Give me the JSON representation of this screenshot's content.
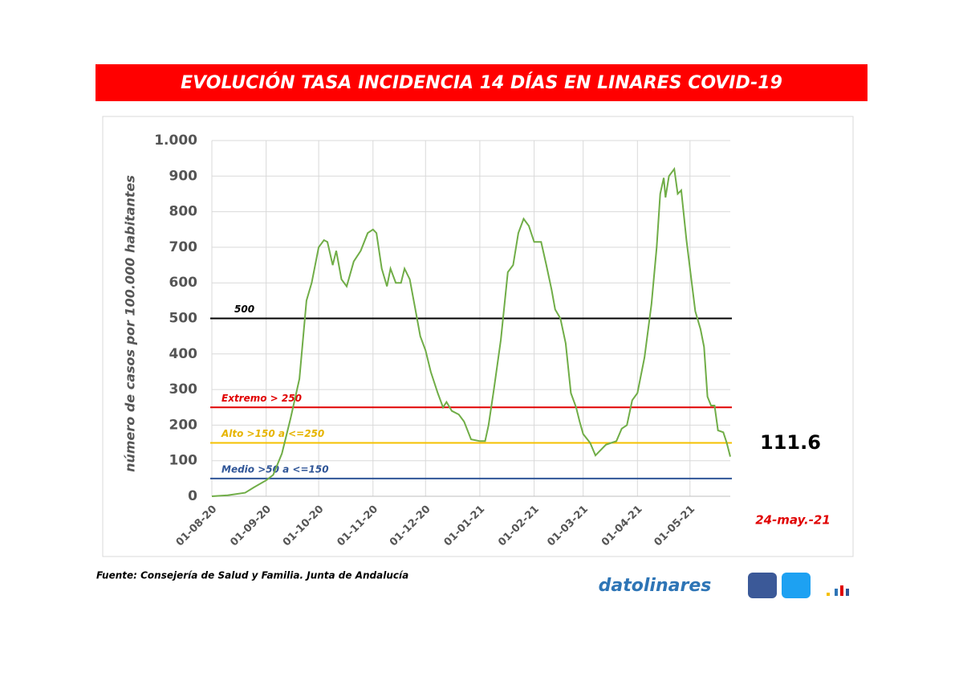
{
  "chart_data": {
    "type": "line",
    "title": "EVOLUCIÓN TASA INCIDENCIA 14 DÍAS EN LINARES COVID-19",
    "y_label": "número de casos por 100.000 habitantes",
    "x": [
      "01-08-20",
      "10-08-20",
      "20-08-20",
      "25-08-20",
      "01-09-20",
      "05-09-20",
      "10-09-20",
      "15-09-20",
      "20-09-20",
      "24-09-20",
      "27-09-20",
      "01-10-20",
      "04-10-20",
      "06-10-20",
      "09-10-20",
      "11-10-20",
      "14-10-20",
      "17-10-20",
      "21-10-20",
      "25-10-20",
      "29-10-20",
      "01-11-20",
      "03-11-20",
      "06-11-20",
      "09-11-20",
      "11-11-20",
      "14-11-20",
      "17-11-20",
      "19-11-20",
      "22-11-20",
      "25-11-20",
      "28-11-20",
      "01-12-20",
      "04-12-20",
      "08-12-20",
      "11-12-20",
      "13-12-20",
      "16-12-20",
      "20-12-20",
      "23-12-20",
      "27-12-20",
      "01-01-21",
      "04-01-21",
      "06-01-21",
      "09-01-21",
      "13-01-21",
      "17-01-21",
      "20-01-21",
      "23-01-21",
      "26-01-21",
      "29-01-21",
      "01-02-21",
      "05-02-21",
      "08-02-21",
      "11-02-21",
      "13-02-21",
      "16-02-21",
      "19-02-21",
      "22-02-21",
      "25-02-21",
      "27-02-21",
      "01-03-21",
      "05-03-21",
      "08-03-21",
      "11-03-21",
      "14-03-21",
      "17-03-21",
      "20-03-21",
      "23-03-21",
      "26-03-21",
      "29-03-21",
      "01-04-21",
      "05-04-21",
      "09-04-21",
      "12-04-21",
      "14-04-21",
      "16-04-21",
      "17-04-21",
      "19-04-21",
      "22-04-21",
      "24-04-21",
      "26-04-21",
      "29-04-21",
      "02-05-21",
      "04-05-21",
      "07-05-21",
      "09-05-21",
      "11-05-21",
      "13-05-21",
      "15-05-21",
      "17-05-21",
      "20-05-21",
      "22-05-21",
      "24-05-21"
    ],
    "series": [
      {
        "name": "Tasa incidencia 14 días",
        "color": "#70ad47",
        "values": [
          0,
          3,
          10,
          25,
          45,
          60,
          120,
          220,
          330,
          550,
          600,
          700,
          720,
          715,
          650,
          690,
          610,
          590,
          660,
          690,
          740,
          750,
          740,
          640,
          590,
          640,
          600,
          600,
          640,
          610,
          530,
          450,
          410,
          350,
          290,
          250,
          265,
          240,
          230,
          210,
          160,
          155,
          155,
          200,
          300,
          440,
          630,
          650,
          740,
          780,
          760,
          715,
          715,
          650,
          580,
          525,
          500,
          430,
          290,
          250,
          210,
          175,
          150,
          115,
          130,
          145,
          150,
          155,
          190,
          200,
          270,
          290,
          390,
          540,
          700,
          850,
          895,
          840,
          900,
          920,
          850,
          860,
          720,
          600,
          520,
          470,
          420,
          280,
          255,
          255,
          185,
          180,
          150,
          111.6
        ]
      }
    ],
    "xlim": [
      "01-08-20",
      "24-05-21"
    ],
    "xticks": [
      "01-08-20",
      "01-09-20",
      "01-10-20",
      "01-11-20",
      "01-12-20",
      "01-01-21",
      "01-02-21",
      "01-03-21",
      "01-04-21",
      "01-05-21"
    ],
    "ylim": [
      0,
      1000
    ],
    "yticks": [
      0,
      100,
      200,
      300,
      400,
      500,
      600,
      700,
      800,
      900,
      {
        "value": 1000,
        "label": "1.000"
      }
    ],
    "grid": true,
    "reference_lines": [
      {
        "value": 500,
        "label": "500",
        "color": "#000000"
      },
      {
        "value": 250,
        "label": "Extremo > 250",
        "color": "#e00000"
      },
      {
        "value": 150,
        "label": "Alto >150 a <=250",
        "color": "#f5c000"
      },
      {
        "value": 50,
        "label": "Medio >50 a <=150",
        "color": "#2f5597"
      }
    ],
    "annotations": [
      "111.6",
      "24-may.-21"
    ],
    "source": "Fuente: Consejería de Salud y Familia. Junta de Andalucía",
    "brand": "datolinares"
  }
}
